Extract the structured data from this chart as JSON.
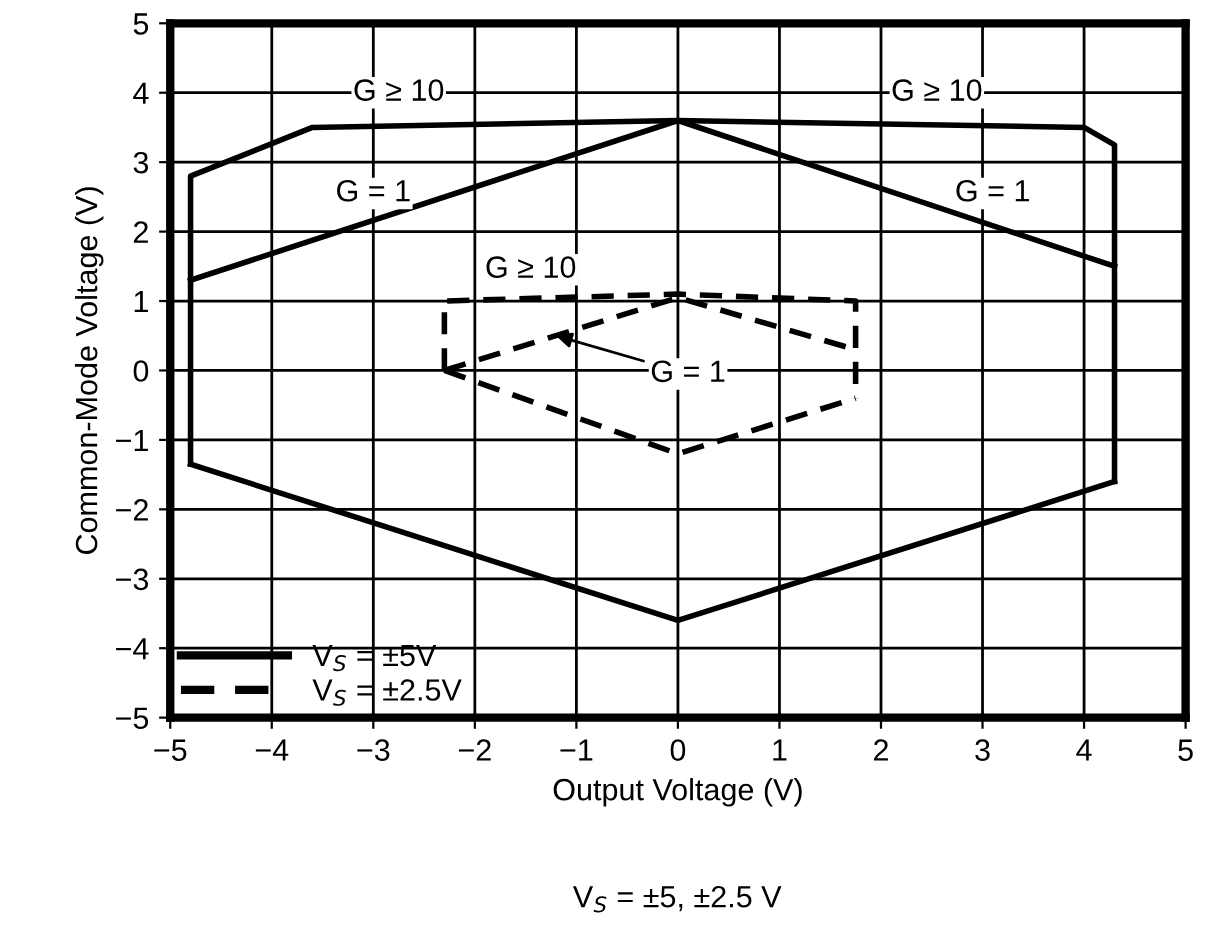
{
  "chart_data": {
    "type": "line",
    "xlabel": "Output Voltage (V)",
    "ylabel": "Common-Mode Voltage (V)",
    "series": [
      {
        "name": "V$_{S}$ = ±5V",
        "color": "#000000",
        "line_style": "solid",
        "x": [
          -4.8,
          -4.8,
          -3.6,
          0,
          4.0,
          4.3,
          4.3
        ],
        "values": [
          -1.35,
          2.8,
          3.5,
          3.6,
          3.5,
          3.25,
          -1.6
        ]
      },
      {
        "color": "#000000",
        "line_style": "solid",
        "x": [
          -4.8,
          0,
          4.3
        ],
        "values": [
          -1.35,
          -3.6,
          -1.6
        ]
      },
      {
        "color": "#000000",
        "line_style": "solid",
        "x": [
          -4.8,
          0,
          4.3
        ],
        "values": [
          1.3,
          3.6,
          1.5
        ]
      },
      {
        "name": "V$_{S}$ = ±2.5V",
        "color": "#000000",
        "line_style": "dashed",
        "x": [
          -2.3,
          -2.3,
          0,
          1.75,
          1.75
        ],
        "values": [
          0.0,
          1.0,
          1.1,
          1.0,
          -0.4
        ]
      },
      {
        "color": "#000000",
        "line_style": "dashed",
        "x": [
          -2.3,
          0,
          1.75
        ],
        "values": [
          0.0,
          -1.2,
          -0.4
        ]
      },
      {
        "color": "#000000",
        "line_style": "dashed",
        "x": [
          -2.3,
          0,
          1.75
        ],
        "values": [
          0.0,
          1.05,
          0.3
        ]
      }
    ],
    "xlim": [
      -5,
      5
    ],
    "ylim": [
      -5,
      5
    ],
    "xticks": [
      {
        "value": -5,
        "label": "−5"
      },
      {
        "value": -4,
        "label": "−4"
      },
      {
        "value": -3,
        "label": "−3"
      },
      {
        "value": -2,
        "label": "−2"
      },
      {
        "value": -1,
        "label": "−1"
      },
      0,
      1,
      2,
      3,
      4,
      5
    ],
    "yticks": [
      {
        "value": -5,
        "label": "−5"
      },
      {
        "value": -4,
        "label": "−4"
      },
      {
        "value": -3,
        "label": "−3"
      },
      {
        "value": -2,
        "label": "−2"
      },
      {
        "value": -1,
        "label": "−1"
      },
      0,
      1,
      2,
      3,
      4,
      5
    ],
    "grid": true,
    "legend": "bottom left",
    "marker": "none",
    "annotations": [
      "G ≥ 10",
      "G ≥ 10",
      "G = 1",
      "G = 1",
      "G ≥ 10",
      {
        "text": "G = 1",
        "x": -1.2,
        "y": 0.5
      },
      "V$_{S}$ = ±5, ±2.5 V"
    ]
  }
}
